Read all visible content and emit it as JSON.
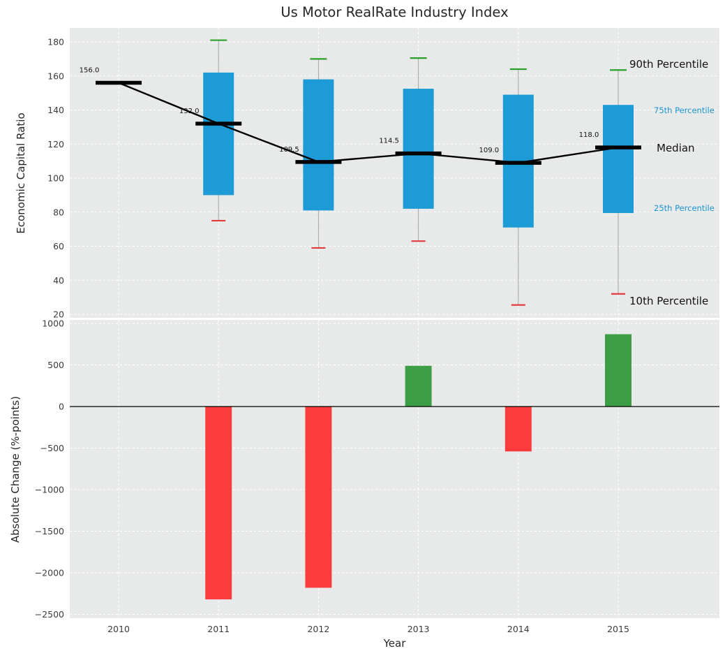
{
  "figure": {
    "title": "Us Motor RealRate Industry Index",
    "panel_bg": "#e8eaea",
    "grid_color": "#ffffff"
  },
  "chart_data": [
    {
      "type": "boxplot",
      "title": "Us Motor RealRate Industry Index",
      "ylabel": "Economic Capital Ratio",
      "x": [
        2010,
        2011,
        2012,
        2013,
        2014,
        2015
      ],
      "yticks": [
        20,
        40,
        60,
        80,
        100,
        120,
        140,
        160,
        180
      ],
      "ylim": [
        18,
        188
      ],
      "grid": true,
      "series": {
        "median": [
          156.0,
          132.0,
          109.5,
          114.5,
          109.0,
          118.0
        ],
        "p90": [
          null,
          181.0,
          170.0,
          170.5,
          164.0,
          163.5
        ],
        "p75": [
          null,
          162.0,
          158.0,
          152.5,
          149.0,
          143.0
        ],
        "p25": [
          null,
          90.0,
          81.0,
          82.0,
          71.0,
          79.5
        ],
        "p10": [
          null,
          75.0,
          59.0,
          63.0,
          25.5,
          32.0
        ]
      },
      "median_labels": [
        "156.0",
        "132.0",
        "109.5",
        "114.5",
        "109.0",
        "118.0"
      ],
      "annotations": [
        {
          "text": "90th Percentile",
          "color": "#111111"
        },
        {
          "text": "75th Percentile",
          "color": "#1b94cf"
        },
        {
          "text": "Median",
          "color": "#111111"
        },
        {
          "text": "25th Percentile",
          "color": "#1b94cf"
        },
        {
          "text": "10th Percentile",
          "color": "#111111"
        }
      ],
      "colors": {
        "box": "#1c9bd6",
        "p90_cap": "#2ca02c",
        "p10_cap": "#e23b3b",
        "median": "#000000",
        "whisker": "#a0a0a0"
      }
    },
    {
      "type": "bar",
      "ylabel": "Absolute Change (%-points)",
      "xlabel": "Year",
      "categories": [
        "2010",
        "2011",
        "2012",
        "2013",
        "2014",
        "2015"
      ],
      "values": [
        0,
        -2320,
        -2180,
        490,
        -540,
        870
      ],
      "yticks": [
        1000,
        500,
        0,
        -500,
        -1000,
        -1500,
        -2000,
        -2500
      ],
      "ylim": [
        -2550,
        1050
      ],
      "grid": true,
      "colors": {
        "positive": "#3e9e46",
        "negative": "#fb3c3c",
        "zero_line": "#000000"
      }
    }
  ]
}
